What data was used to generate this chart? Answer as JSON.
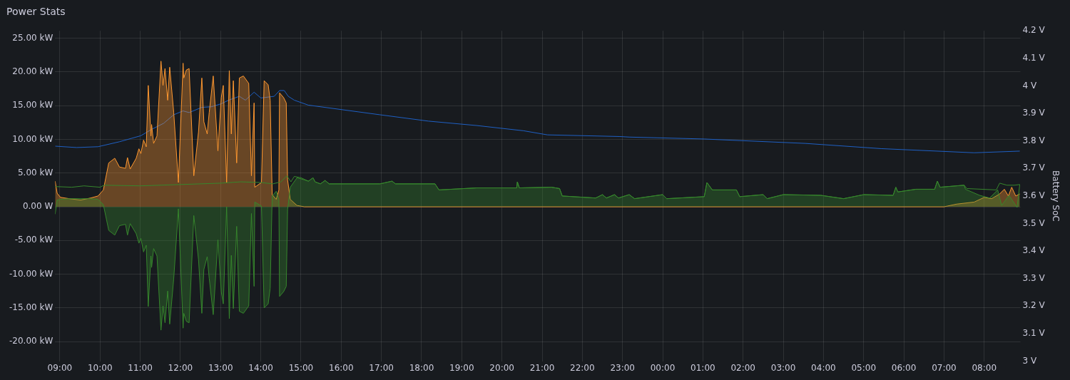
{
  "chart_data": {
    "type": "area",
    "title": "Power Stats",
    "y2label": "Battery SoC",
    "grid": true,
    "xlim": [
      "--01-01T08:53",
      "--01-02T08:54"
    ],
    "ylim": [
      -22.9,
      26.1
    ],
    "y2lim": [
      3,
      4.2
    ],
    "xticks": [
      {
        "value": "--01-01T09:00",
        "label": "09:00"
      },
      {
        "value": "--01-01T10:00",
        "label": "10:00"
      },
      {
        "value": "--01-01T11:00",
        "label": "11:00"
      },
      {
        "value": "--01-01T12:00",
        "label": "12:00"
      },
      {
        "value": "--01-01T13:00",
        "label": "13:00"
      },
      {
        "value": "--01-01T14:00",
        "label": "14:00"
      },
      {
        "value": "--01-01T15:00",
        "label": "15:00"
      },
      {
        "value": "--01-01T16:00",
        "label": "16:00"
      },
      {
        "value": "--01-01T17:00",
        "label": "17:00"
      },
      {
        "value": "--01-01T18:00",
        "label": "18:00"
      },
      {
        "value": "--01-01T19:00",
        "label": "19:00"
      },
      {
        "value": "--01-01T20:00",
        "label": "20:00"
      },
      {
        "value": "--01-01T21:00",
        "label": "21:00"
      },
      {
        "value": "--01-01T22:00",
        "label": "22:00"
      },
      {
        "value": "--01-01T23:00",
        "label": "23:00"
      },
      {
        "value": "--01-02T00:00",
        "label": "00:00"
      },
      {
        "value": "--01-02T01:00",
        "label": "01:00"
      },
      {
        "value": "--01-02T02:00",
        "label": "02:00"
      },
      {
        "value": "--01-02T03:00",
        "label": "03:00"
      },
      {
        "value": "--01-02T04:00",
        "label": "04:00"
      },
      {
        "value": "--01-02T05:00",
        "label": "05:00"
      },
      {
        "value": "--01-02T06:00",
        "label": "06:00"
      },
      {
        "value": "--01-02T07:00",
        "label": "07:00"
      },
      {
        "value": "--01-02T08:00",
        "label": "08:00"
      }
    ],
    "yticks": [
      {
        "value": 25,
        "label": "25.00 kW"
      },
      {
        "value": 20,
        "label": "20.00 kW"
      },
      {
        "value": 15,
        "label": "15.00 kW"
      },
      {
        "value": 10,
        "label": "10.00 kW"
      },
      {
        "value": 5,
        "label": "5.00 kW"
      },
      {
        "value": 0,
        "label": "0.00 W"
      },
      {
        "value": -5,
        "label": "-5.00 kW"
      },
      {
        "value": -10,
        "label": "-10.00 kW"
      },
      {
        "value": -15,
        "label": "-15.00 kW"
      },
      {
        "value": -20,
        "label": "-20.00 kW"
      }
    ],
    "y2ticks": [
      {
        "value": 3,
        "label": "3 V"
      },
      {
        "value": 3.1,
        "label": "3.1 V"
      },
      {
        "value": 3.2,
        "label": "3.2 V"
      },
      {
        "value": 3.3,
        "label": "3.3 V"
      },
      {
        "value": 3.4,
        "label": "3.4 V"
      },
      {
        "value": 3.5,
        "label": "3.5 V"
      },
      {
        "value": 3.6,
        "label": "3.6 V"
      },
      {
        "value": 3.7,
        "label": "3.7 V"
      },
      {
        "value": 3.8,
        "label": "3.8 V"
      },
      {
        "value": 3.9,
        "label": "3.9 V"
      },
      {
        "value": 4,
        "label": "4 V"
      },
      {
        "value": 4.1,
        "label": "4.1 V"
      },
      {
        "value": 4.2,
        "label": "4.2 V"
      }
    ],
    "series": [
      {
        "color": "#37872d",
        "x": [
          "--01-01T08:53",
          "--01-01T08:56",
          "--01-01T09:01",
          "--01-01T09:14",
          "--01-01T09:31",
          "--01-01T09:46",
          "--01-01T09:57",
          "--01-01T10:05",
          "--01-01T10:13",
          "--01-01T10:22",
          "--01-01T10:29",
          "--01-01T10:38",
          "--01-01T10:41",
          "--01-01T10:45",
          "--01-01T10:54",
          "--01-01T10:58",
          "--01-01T11:01",
          "--01-01T11:05",
          "--01-01T11:09",
          "--01-01T11:12",
          "--01-01T11:16",
          "--01-01T11:17",
          "--01-01T11:20",
          "--01-01T11:25",
          "--01-01T11:31",
          "--01-01T11:34",
          "--01-01T11:37",
          "--01-01T11:41",
          "--01-01T11:44",
          "--01-01T11:50",
          "--01-01T11:57",
          "--01-01T12:04",
          "--01-01T12:05",
          "--01-01T12:09",
          "--01-01T12:13",
          "--01-01T12:16",
          "--01-01T12:20",
          "--01-01T12:27",
          "--01-01T12:32",
          "--01-01T12:35",
          "--01-01T12:40",
          "--01-01T12:43",
          "--01-01T12:49",
          "--01-01T12:56",
          "--01-01T13:01",
          "--01-01T13:04",
          "--01-01T13:09",
          "--01-01T13:13",
          "--01-01T13:16",
          "--01-01T13:19",
          "--01-01T13:24",
          "--01-01T13:28",
          "--01-01T13:34",
          "--01-01T13:42",
          "--01-01T13:46",
          "--01-01T13:50",
          "--01-01T13:51",
          "--01-01T14:01",
          "--01-01T14:05",
          "--01-01T14:11",
          "--01-01T14:14",
          "--01-01T14:17",
          "--01-01T14:23",
          "--01-01T14:27",
          "--01-01T14:28",
          "--01-01T14:34",
          "--01-01T14:38",
          "--01-01T14:40",
          "--01-01T14:44",
          "--01-01T14:54",
          "--01-01T15:05",
          "--01-01T15:11",
          "--01-01T15:18",
          "--01-01T15:21",
          "--01-01T15:29",
          "--01-01T15:36",
          "--01-01T15:42",
          "--01-01T16:58",
          "--01-01T17:16",
          "--01-01T17:21",
          "--01-01T18:20",
          "--01-01T18:26",
          "--01-01T19:22",
          "--01-01T20:22",
          "--01-01T20:23",
          "--01-01T20:26",
          "--01-01T21:14",
          "--01-01T21:26",
          "--01-01T21:30",
          "--01-01T22:20",
          "--01-01T22:30",
          "--01-01T22:36",
          "--01-01T22:48",
          "--01-01T22:54",
          "--01-01T23:10",
          "--01-01T23:18",
          "--01-02T00:00",
          "--01-02T00:06",
          "--01-02T01:02",
          "--01-02T01:06",
          "--01-02T01:14",
          "--01-02T01:50",
          "--01-02T01:55",
          "--01-02T02:30",
          "--01-02T02:36",
          "--01-02T03:00",
          "--01-02T03:56",
          "--01-02T04:30",
          "--01-02T05:00",
          "--01-02T05:44",
          "--01-02T05:48",
          "--01-02T05:51",
          "--01-02T06:18",
          "--01-02T06:46",
          "--01-02T06:50",
          "--01-02T06:54",
          "--01-02T07:30",
          "--01-02T07:32",
          "--01-02T07:53",
          "--01-02T08:08",
          "--01-02T08:20",
          "--01-02T08:26",
          "--01-02T08:37",
          "--01-02T08:49",
          "--01-02T08:53"
        ],
        "values": [
          -1.1,
          1.0,
          1.1,
          1.2,
          1.2,
          1.2,
          1.1,
          0.3,
          -3.5,
          -4.2,
          -2.8,
          -2.6,
          -4.2,
          -2.5,
          -4.0,
          -5.4,
          -4.7,
          -6.7,
          -5.7,
          -14.8,
          -7.3,
          -9.0,
          -6.2,
          -7.3,
          -18.3,
          -14.7,
          -17.2,
          -12.5,
          -17.4,
          -10.7,
          -0.3,
          -18.0,
          -15.8,
          -17.0,
          -17.2,
          -10.4,
          -1.3,
          -7.8,
          -15.8,
          -9.3,
          -7.4,
          -10.6,
          -16.0,
          -4.9,
          -12.6,
          -14.4,
          0,
          -16.6,
          -7.2,
          -15.1,
          -2.9,
          -15.5,
          -15.8,
          -14.7,
          -1.0,
          -11.8,
          0.7,
          0.1,
          -15.0,
          -14.4,
          -12.1,
          1.6,
          2.3,
          1.1,
          -13.3,
          -12.6,
          -11.8,
          -0.4,
          2.9,
          4.3,
          4.0,
          3.8,
          4.3,
          3.7,
          3.4,
          3.9,
          3.4,
          3.4,
          3.8,
          3.4,
          3.4,
          2.5,
          2.8,
          2.8,
          3.7,
          2.8,
          2.9,
          2.7,
          1.6,
          1.3,
          1.8,
          1.3,
          1.8,
          1.3,
          1.8,
          1.2,
          1.8,
          1.2,
          1.5,
          3.6,
          2.5,
          2.5,
          1.5,
          1.8,
          1.2,
          1.8,
          1.7,
          1.2,
          1.8,
          1.7,
          2.9,
          2.2,
          2.6,
          2.6,
          3.8,
          2.9,
          3.2,
          2.6,
          1.7,
          1.3,
          2.5,
          0.2,
          1.7,
          -0.1,
          3.3
        ]
      },
      {
        "type": "line",
        "color": "#37872d",
        "x": [
          "--01-01T08:53",
          "--01-01T09:18",
          "--01-01T09:36",
          "--01-01T10:00",
          "--01-01T10:06",
          "--01-01T11:00",
          "--01-01T12:00",
          "--01-01T13:00",
          "--01-01T13:30",
          "--01-01T14:00",
          "--01-01T14:18",
          "--01-01T14:30",
          "--01-01T14:39",
          "--01-01T14:45",
          "--01-01T14:50",
          "--01-01T15:00",
          "--01-01T15:11",
          "--01-01T15:18",
          "--01-01T15:21",
          "--01-01T15:29",
          "--01-01T15:36",
          "--01-01T15:42",
          "--01-01T16:58",
          "--01-01T17:16",
          "--01-01T17:21",
          "--01-01T18:20",
          "--01-01T18:26",
          "--01-01T19:22",
          "--01-01T20:22",
          "--01-01T20:23",
          "--01-01T20:26",
          "--01-01T21:14",
          "--01-01T21:26",
          "--01-01T21:30",
          "--01-01T22:20",
          "--01-01T22:30",
          "--01-01T22:36",
          "--01-01T22:48",
          "--01-01T22:54",
          "--01-01T23:10",
          "--01-01T23:18",
          "--01-02T00:00",
          "--01-02T00:06",
          "--01-02T01:02",
          "--01-02T01:06",
          "--01-02T01:14",
          "--01-02T01:50",
          "--01-02T01:55",
          "--01-02T02:30",
          "--01-02T02:36",
          "--01-02T03:00",
          "--01-02T03:56",
          "--01-02T04:30",
          "--01-02T05:00",
          "--01-02T05:44",
          "--01-02T05:48",
          "--01-02T05:51",
          "--01-02T06:18",
          "--01-02T06:46",
          "--01-02T06:50",
          "--01-02T06:54",
          "--01-02T07:30",
          "--01-02T07:34",
          "--01-02T08:18",
          "--01-02T08:23",
          "--01-02T08:34",
          "--01-02T08:45",
          "--01-02T08:53"
        ],
        "values": [
          3.0,
          2.9,
          3.1,
          2.9,
          3.2,
          3.1,
          3.3,
          3.5,
          3.7,
          3.6,
          3.4,
          3.7,
          4.6,
          3.7,
          4.5,
          4.3,
          3.8,
          4.3,
          3.7,
          3.4,
          3.9,
          3.4,
          3.4,
          3.8,
          3.4,
          3.4,
          2.5,
          2.8,
          2.8,
          3.7,
          2.8,
          2.9,
          2.7,
          1.6,
          1.3,
          1.8,
          1.3,
          1.8,
          1.3,
          1.8,
          1.2,
          1.8,
          1.2,
          1.5,
          3.6,
          2.5,
          2.5,
          1.5,
          1.8,
          1.2,
          1.8,
          1.7,
          1.2,
          1.8,
          1.7,
          2.9,
          2.2,
          2.6,
          2.6,
          3.8,
          2.9,
          3.2,
          2.7,
          2.5,
          3.5,
          3.2,
          3.2,
          3.3
        ]
      },
      {
        "color": "#ff9830",
        "x": [
          "--01-01T08:53",
          "--01-01T08:56",
          "--01-01T09:01",
          "--01-01T09:14",
          "--01-01T09:31",
          "--01-01T09:46",
          "--01-01T09:57",
          "--01-01T10:05",
          "--01-01T10:13",
          "--01-01T10:22",
          "--01-01T10:29",
          "--01-01T10:38",
          "--01-01T10:41",
          "--01-01T10:45",
          "--01-01T10:54",
          "--01-01T10:58",
          "--01-01T11:01",
          "--01-01T11:05",
          "--01-01T11:09",
          "--01-01T11:12",
          "--01-01T11:16",
          "--01-01T11:17",
          "--01-01T11:20",
          "--01-01T11:25",
          "--01-01T11:31",
          "--01-01T11:34",
          "--01-01T11:37",
          "--01-01T11:41",
          "--01-01T11:44",
          "--01-01T11:50",
          "--01-01T11:57",
          "--01-01T12:04",
          "--01-01T12:05",
          "--01-01T12:09",
          "--01-01T12:13",
          "--01-01T12:16",
          "--01-01T12:20",
          "--01-01T12:27",
          "--01-01T12:32",
          "--01-01T12:35",
          "--01-01T12:40",
          "--01-01T12:43",
          "--01-01T12:49",
          "--01-01T12:56",
          "--01-01T13:01",
          "--01-01T13:04",
          "--01-01T13:09",
          "--01-01T13:13",
          "--01-01T13:16",
          "--01-01T13:19",
          "--01-01T13:24",
          "--01-01T13:28",
          "--01-01T13:34",
          "--01-01T13:42",
          "--01-01T13:46",
          "--01-01T13:50",
          "--01-01T13:51",
          "--01-01T14:01",
          "--01-01T14:05",
          "--01-01T14:11",
          "--01-01T14:14",
          "--01-01T14:17",
          "--01-01T14:23",
          "--01-01T14:27",
          "--01-01T14:28",
          "--01-01T14:34",
          "--01-01T14:38",
          "--01-01T14:40",
          "--01-01T14:44",
          "--01-01T14:54",
          "--01-01T15:05",
          "--01-01T20:00",
          "--01-02T01:00",
          "--01-02T07:00",
          "--01-02T07:19",
          "--01-02T07:45",
          "--01-02T08:00",
          "--01-02T08:11",
          "--01-02T08:23",
          "--01-02T08:30",
          "--01-02T08:36",
          "--01-02T08:41",
          "--01-02T08:47",
          "--01-02T08:53"
        ],
        "values": [
          3.8,
          2.0,
          1.4,
          1.2,
          1.0,
          1.3,
          1.6,
          2.5,
          6.5,
          7.2,
          5.9,
          5.7,
          7.3,
          5.6,
          7.2,
          8.6,
          7.9,
          9.9,
          8.9,
          18.0,
          10.5,
          12.2,
          9.4,
          10.5,
          21.6,
          18.0,
          20.5,
          15.8,
          20.7,
          14.0,
          3.6,
          21.3,
          19.1,
          20.3,
          20.5,
          13.7,
          4.6,
          11.1,
          19.1,
          12.6,
          10.8,
          14.0,
          19.4,
          8.3,
          16.2,
          18.0,
          3.6,
          20.2,
          10.8,
          18.7,
          6.5,
          19.1,
          19.4,
          18.3,
          4.6,
          15.4,
          2.9,
          3.6,
          18.7,
          18.1,
          15.8,
          1.8,
          1.1,
          2.5,
          16.9,
          16.2,
          15.4,
          4.0,
          1.1,
          0.2,
          0,
          0,
          0,
          0,
          0.4,
          0.7,
          1.4,
          1.2,
          1.9,
          2.6,
          1.6,
          2.9,
          1.6,
          1.9
        ]
      },
      {
        "type": "line",
        "axis": "y2",
        "color": "#1f60c4",
        "x": [
          "--01-01T08:53",
          "--01-01T09:25",
          "--01-01T09:57",
          "--01-01T10:29",
          "--01-01T11:01",
          "--01-01T11:17",
          "--01-01T11:35",
          "--01-01T11:50",
          "--01-01T12:04",
          "--01-01T12:13",
          "--01-01T12:32",
          "--01-01T12:46",
          "--01-01T13:01",
          "--01-01T13:12",
          "--01-01T13:28",
          "--01-01T13:37",
          "--01-01T13:50",
          "--01-01T14:00",
          "--01-01T14:20",
          "--01-01T14:28",
          "--01-01T14:35",
          "--01-01T14:41",
          "--01-01T14:50",
          "--01-01T15:11",
          "--01-01T16:58",
          "--01-01T18:10",
          "--01-01T19:22",
          "--01-01T20:32",
          "--01-01T21:08",
          "--01-01T22:56",
          "--01-01T23:10",
          "--01-02T01:02",
          "--01-02T03:33",
          "--01-02T05:26",
          "--01-02T07:45",
          "--01-02T08:53"
        ],
        "values": [
          3.781,
          3.776,
          3.779,
          3.797,
          3.819,
          3.842,
          3.864,
          3.895,
          3.909,
          3.903,
          3.922,
          3.924,
          3.935,
          3.948,
          3.962,
          3.948,
          3.977,
          3.956,
          3.962,
          3.983,
          3.983,
          3.962,
          3.948,
          3.93,
          3.895,
          3.872,
          3.856,
          3.837,
          3.822,
          3.816,
          3.814,
          3.807,
          3.791,
          3.772,
          3.757,
          3.763
        ]
      }
    ]
  }
}
